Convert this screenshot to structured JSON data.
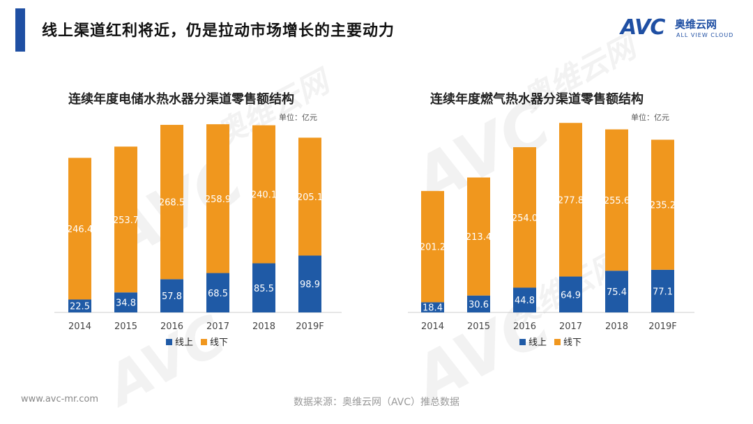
{
  "page": {
    "title": "线上渠道红利将近，仍是拉动市场增长的主要动力"
  },
  "logo": {
    "mark": "AVC",
    "cn_name": "奥维云网",
    "en_name": "ALL VIEW CLOUD",
    "brand_color": "#1f4fa3"
  },
  "watermark": {
    "mark": "AVC",
    "cn_name": "奥维云网",
    "en_name": "ALL VIEW CLOUD"
  },
  "footer": {
    "url": "www.avc-mr.com",
    "source": "数据来源：奥维云网（AVC）推总数据"
  },
  "colors": {
    "online": "#1f5aa6",
    "offline": "#f0971e"
  },
  "chart_data": [
    {
      "type": "bar",
      "stacked": true,
      "title": "连续年度电储水热水器分渠道零售额结构",
      "unit": "单位：亿元",
      "categories": [
        "2014",
        "2015",
        "2016",
        "2017",
        "2018",
        "2019F"
      ],
      "series": [
        {
          "name": "线上",
          "values": [
            22.5,
            34.8,
            57.8,
            68.5,
            85.5,
            98.9
          ]
        },
        {
          "name": "线下",
          "values": [
            246.4,
            253.7,
            268.5,
            258.9,
            240.1,
            205.1
          ]
        }
      ],
      "ylim": [
        0,
        330
      ],
      "legend": "bottom-center"
    },
    {
      "type": "bar",
      "stacked": true,
      "title": "连续年度燃气热水器分渠道零售额结构",
      "unit": "单位：亿元",
      "categories": [
        "2014",
        "2015",
        "2016",
        "2017",
        "2018",
        "2019F"
      ],
      "series": [
        {
          "name": "线上",
          "values": [
            18.4,
            30.6,
            44.8,
            64.9,
            75.4,
            77.1
          ]
        },
        {
          "name": "线下",
          "values": [
            201.2,
            213.4,
            254.0,
            277.8,
            255.6,
            235.2
          ]
        }
      ],
      "ylim": [
        0,
        343
      ],
      "legend": "bottom-center"
    }
  ]
}
